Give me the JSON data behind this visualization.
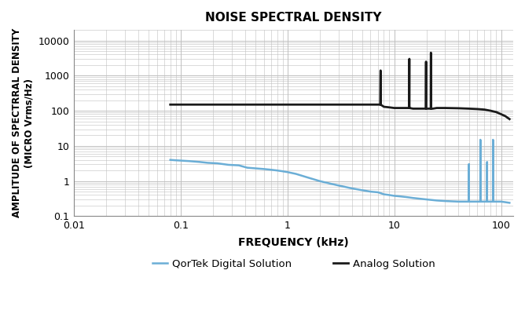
{
  "title": "NOISE SPECTRAL DENSITY",
  "xlabel": "FREQUENCY (kHz)",
  "ylabel": "AMPLITUDE OF SPECTRRAL DENSITY\n(MICRO Vrms/Hz)",
  "xlim": [
    0.01,
    130
  ],
  "ylim": [
    0.1,
    20000
  ],
  "background_color": "#ffffff",
  "grid_color": "#c0c0c0",
  "legend": [
    {
      "label": "QorTek Digital Solution",
      "color": "#6baed6"
    },
    {
      "label": "Analog Solution",
      "color": "#1a1a1a"
    }
  ],
  "analog": {
    "color": "#1a1a1a",
    "x": [
      0.08,
      0.09,
      0.15,
      0.3,
      0.5,
      1.0,
      2.0,
      5.0,
      7.4,
      7.45,
      7.46,
      7.45,
      8.0,
      9.0,
      10.0,
      13.8,
      13.85,
      13.86,
      13.85,
      15.0,
      17.0,
      19.8,
      19.85,
      19.86,
      19.85,
      21.0,
      22.0,
      22.05,
      22.06,
      22.05,
      23.0,
      25.0,
      30.0,
      40.0,
      50.0,
      60.0,
      70.0,
      80.0,
      90.0,
      100.0,
      110.0,
      120.0
    ],
    "y": [
      150,
      150,
      150,
      150,
      150,
      150,
      150,
      150,
      150,
      1400,
      150,
      150,
      130,
      125,
      120,
      120,
      3000,
      120,
      120,
      115,
      115,
      115,
      2500,
      115,
      115,
      115,
      115,
      4500,
      115,
      115,
      115,
      120,
      120,
      118,
      115,
      112,
      108,
      100,
      92,
      80,
      70,
      58
    ]
  },
  "digital": {
    "color": "#6baed6",
    "x": [
      0.08,
      0.09,
      0.12,
      0.15,
      0.18,
      0.22,
      0.28,
      0.35,
      0.42,
      0.5,
      0.6,
      0.7,
      0.8,
      0.9,
      1.0,
      1.2,
      1.5,
      2.0,
      2.5,
      3.0,
      4.0,
      5.0,
      6.0,
      7.0,
      7.5,
      8.0,
      9.0,
      10.0,
      11.0,
      12.0,
      13.0,
      14.0,
      15.0,
      20.0,
      25.0,
      30.0,
      40.0,
      49.0,
      50.0,
      50.05,
      50.0,
      55.0,
      60.0,
      63.0,
      64.0,
      64.05,
      64.06,
      64.05,
      65.0,
      70.0,
      73.0,
      74.0,
      74.05,
      74.06,
      74.05,
      75.0,
      80.0,
      83.0,
      84.0,
      84.05,
      84.06,
      84.05,
      86.0,
      90.0,
      95.0,
      100.0,
      110.0,
      120.0
    ],
    "y": [
      4.0,
      3.9,
      3.7,
      3.5,
      3.3,
      3.2,
      2.9,
      2.8,
      2.4,
      2.3,
      2.2,
      2.1,
      2.0,
      1.9,
      1.8,
      1.6,
      1.3,
      1.0,
      0.85,
      0.75,
      0.62,
      0.55,
      0.5,
      0.48,
      0.45,
      0.42,
      0.4,
      0.38,
      0.37,
      0.36,
      0.35,
      0.34,
      0.33,
      0.3,
      0.28,
      0.27,
      0.26,
      0.26,
      0.26,
      3.0,
      0.26,
      0.26,
      0.26,
      0.26,
      0.26,
      15.0,
      0.26,
      0.26,
      0.26,
      0.26,
      0.26,
      0.26,
      3.5,
      0.26,
      0.26,
      0.26,
      0.26,
      0.26,
      0.26,
      15.0,
      0.26,
      0.26,
      0.26,
      0.26,
      0.26,
      0.26,
      0.25,
      0.24
    ]
  }
}
